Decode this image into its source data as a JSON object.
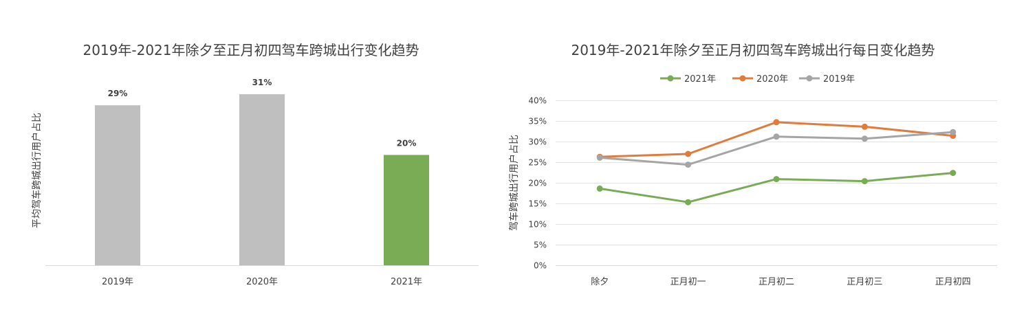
{
  "chart_data": [
    {
      "type": "bar",
      "title": "2019年-2021年除夕至正月初四驾车跨城出行变化趋势",
      "xlabel": "",
      "ylabel": "平均驾车跨城出行用户占比",
      "categories": [
        "2019年",
        "2020年",
        "2021年"
      ],
      "values": [
        29,
        31,
        20
      ],
      "value_labels": [
        "29%",
        "31%",
        "20%"
      ],
      "unit": "%",
      "ylim": [
        0,
        35
      ],
      "bar_colors": [
        "#bfbfbf",
        "#bfbfbf",
        "#7aab55"
      ],
      "grid": false
    },
    {
      "type": "line",
      "title": "2019年-2021年除夕至正月初四驾车跨城出行每日变化趋势",
      "xlabel": "",
      "ylabel": "驾车跨城出行用户占比",
      "categories": [
        "除夕",
        "正月初一",
        "正月初二",
        "正月初三",
        "正月初四"
      ],
      "series": [
        {
          "name": "2021年",
          "color": "#77ac54",
          "values": [
            18.6,
            15.3,
            20.9,
            20.4,
            22.4
          ]
        },
        {
          "name": "2020年",
          "color": "#e07b3c",
          "values": [
            26.3,
            27.0,
            34.7,
            33.6,
            31.4
          ]
        },
        {
          "name": "2019年",
          "color": "#a5a5a5",
          "values": [
            26.1,
            24.4,
            31.2,
            30.7,
            32.3
          ]
        }
      ],
      "ylim": [
        0,
        40
      ],
      "yticks": [
        0,
        5,
        10,
        15,
        20,
        25,
        30,
        35,
        40
      ],
      "ytick_labels": [
        "0%",
        "5%",
        "10%",
        "15%",
        "20%",
        "25%",
        "30%",
        "35%",
        "40%"
      ],
      "grid": true,
      "legend": "top"
    }
  ]
}
